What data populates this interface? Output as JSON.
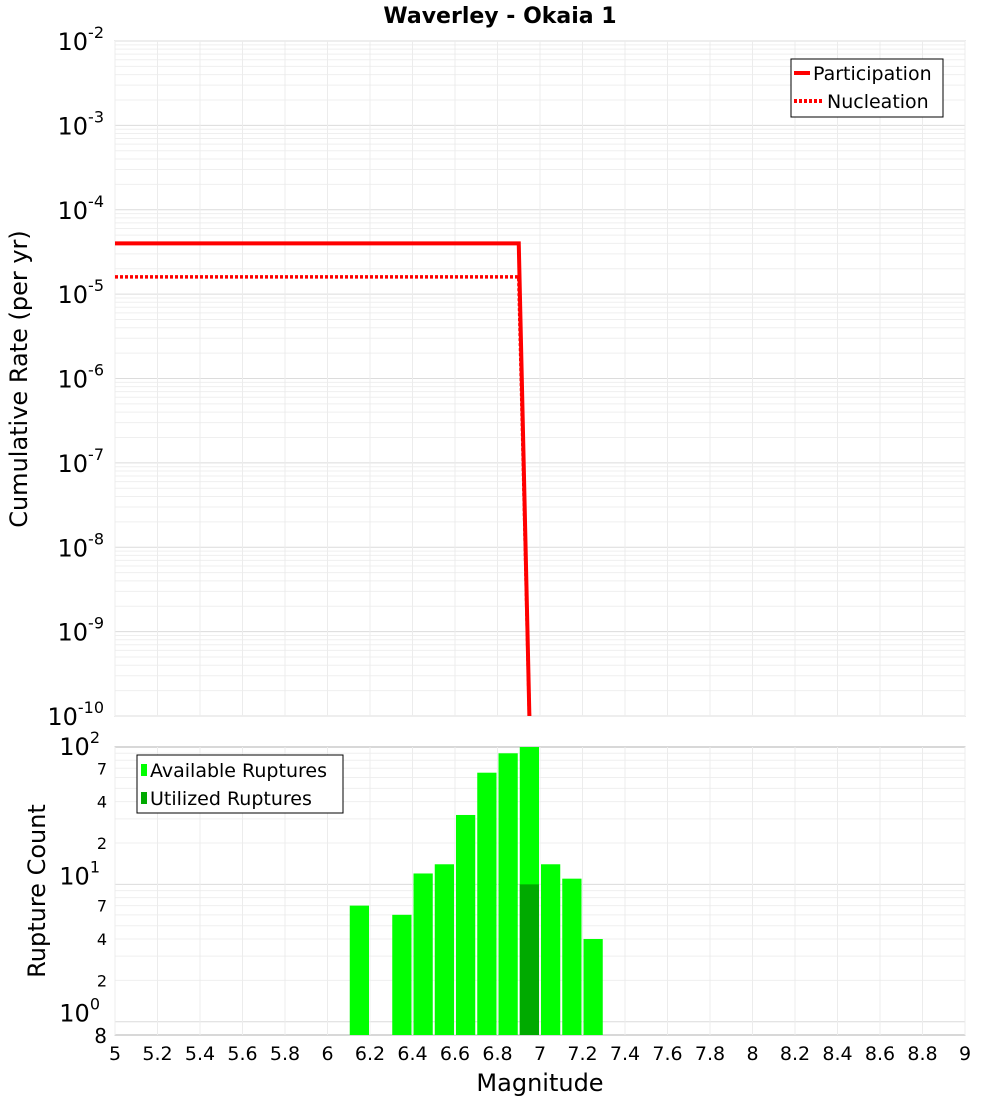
{
  "chart_data": [
    {
      "type": "line",
      "title": "Waverley - Okaia 1",
      "xlabel": "",
      "ylabel": "Cumulative Rate (per yr)",
      "xlim": [
        5,
        9
      ],
      "ylim": [
        1e-10,
        0.01
      ],
      "yscale": "log",
      "y_tick_labels": [
        {
          "base": "10",
          "exp": "-2"
        },
        {
          "base": "10",
          "exp": "-3"
        },
        {
          "base": "10",
          "exp": "-4"
        },
        {
          "base": "10",
          "exp": "-5"
        },
        {
          "base": "10",
          "exp": "-6"
        },
        {
          "base": "10",
          "exp": "-7"
        },
        {
          "base": "10",
          "exp": "-8"
        },
        {
          "base": "10",
          "exp": "-9"
        },
        {
          "base": "10",
          "exp": "-10"
        }
      ],
      "grid": true,
      "legend_position": "top-right",
      "series": [
        {
          "name": "Participation",
          "style": "solid",
          "color": "#ff0000",
          "x": [
            5,
            6.9,
            6.95
          ],
          "y": [
            4e-05,
            4e-05,
            1e-10
          ]
        },
        {
          "name": "Nucleation",
          "style": "dotted",
          "color": "#ff0000",
          "x": [
            5,
            6.9,
            6.95
          ],
          "y": [
            1.6e-05,
            1.6e-05,
            1e-10
          ]
        }
      ]
    },
    {
      "type": "bar",
      "xlabel": "Magnitude",
      "ylabel": "Rupture Count",
      "xlim": [
        5,
        9
      ],
      "ylim": [
        0.8,
        100
      ],
      "yscale": "log",
      "x_ticks": [
        "5",
        "5.2",
        "5.4",
        "5.6",
        "5.8",
        "6",
        "6.2",
        "6.4",
        "6.6",
        "6.8",
        "7",
        "7.2",
        "7.4",
        "7.6",
        "7.8",
        "8",
        "8.2",
        "8.4",
        "8.6",
        "8.8",
        "9"
      ],
      "y_major_tick_labels": [
        {
          "base": "10",
          "exp": "2"
        },
        {
          "base": "10",
          "exp": "1"
        },
        {
          "base": "10",
          "exp": "0"
        }
      ],
      "y_minor_tick_labels": [
        "7",
        "4",
        "2",
        "7",
        "4",
        "2",
        "8"
      ],
      "grid": true,
      "legend_position": "top-left",
      "series": [
        {
          "name": "Available Ruptures",
          "color": "#00ff00",
          "x": [
            6.15,
            6.35,
            6.45,
            6.55,
            6.65,
            6.75,
            6.85,
            6.95,
            7.05,
            7.15,
            7.25
          ],
          "values": [
            7,
            6,
            12,
            14,
            32,
            65,
            90,
            100,
            14,
            11,
            4
          ]
        },
        {
          "name": "Utilized Ruptures",
          "color": "#00aa00",
          "x": [
            6.95
          ],
          "values": [
            10
          ]
        }
      ]
    }
  ]
}
